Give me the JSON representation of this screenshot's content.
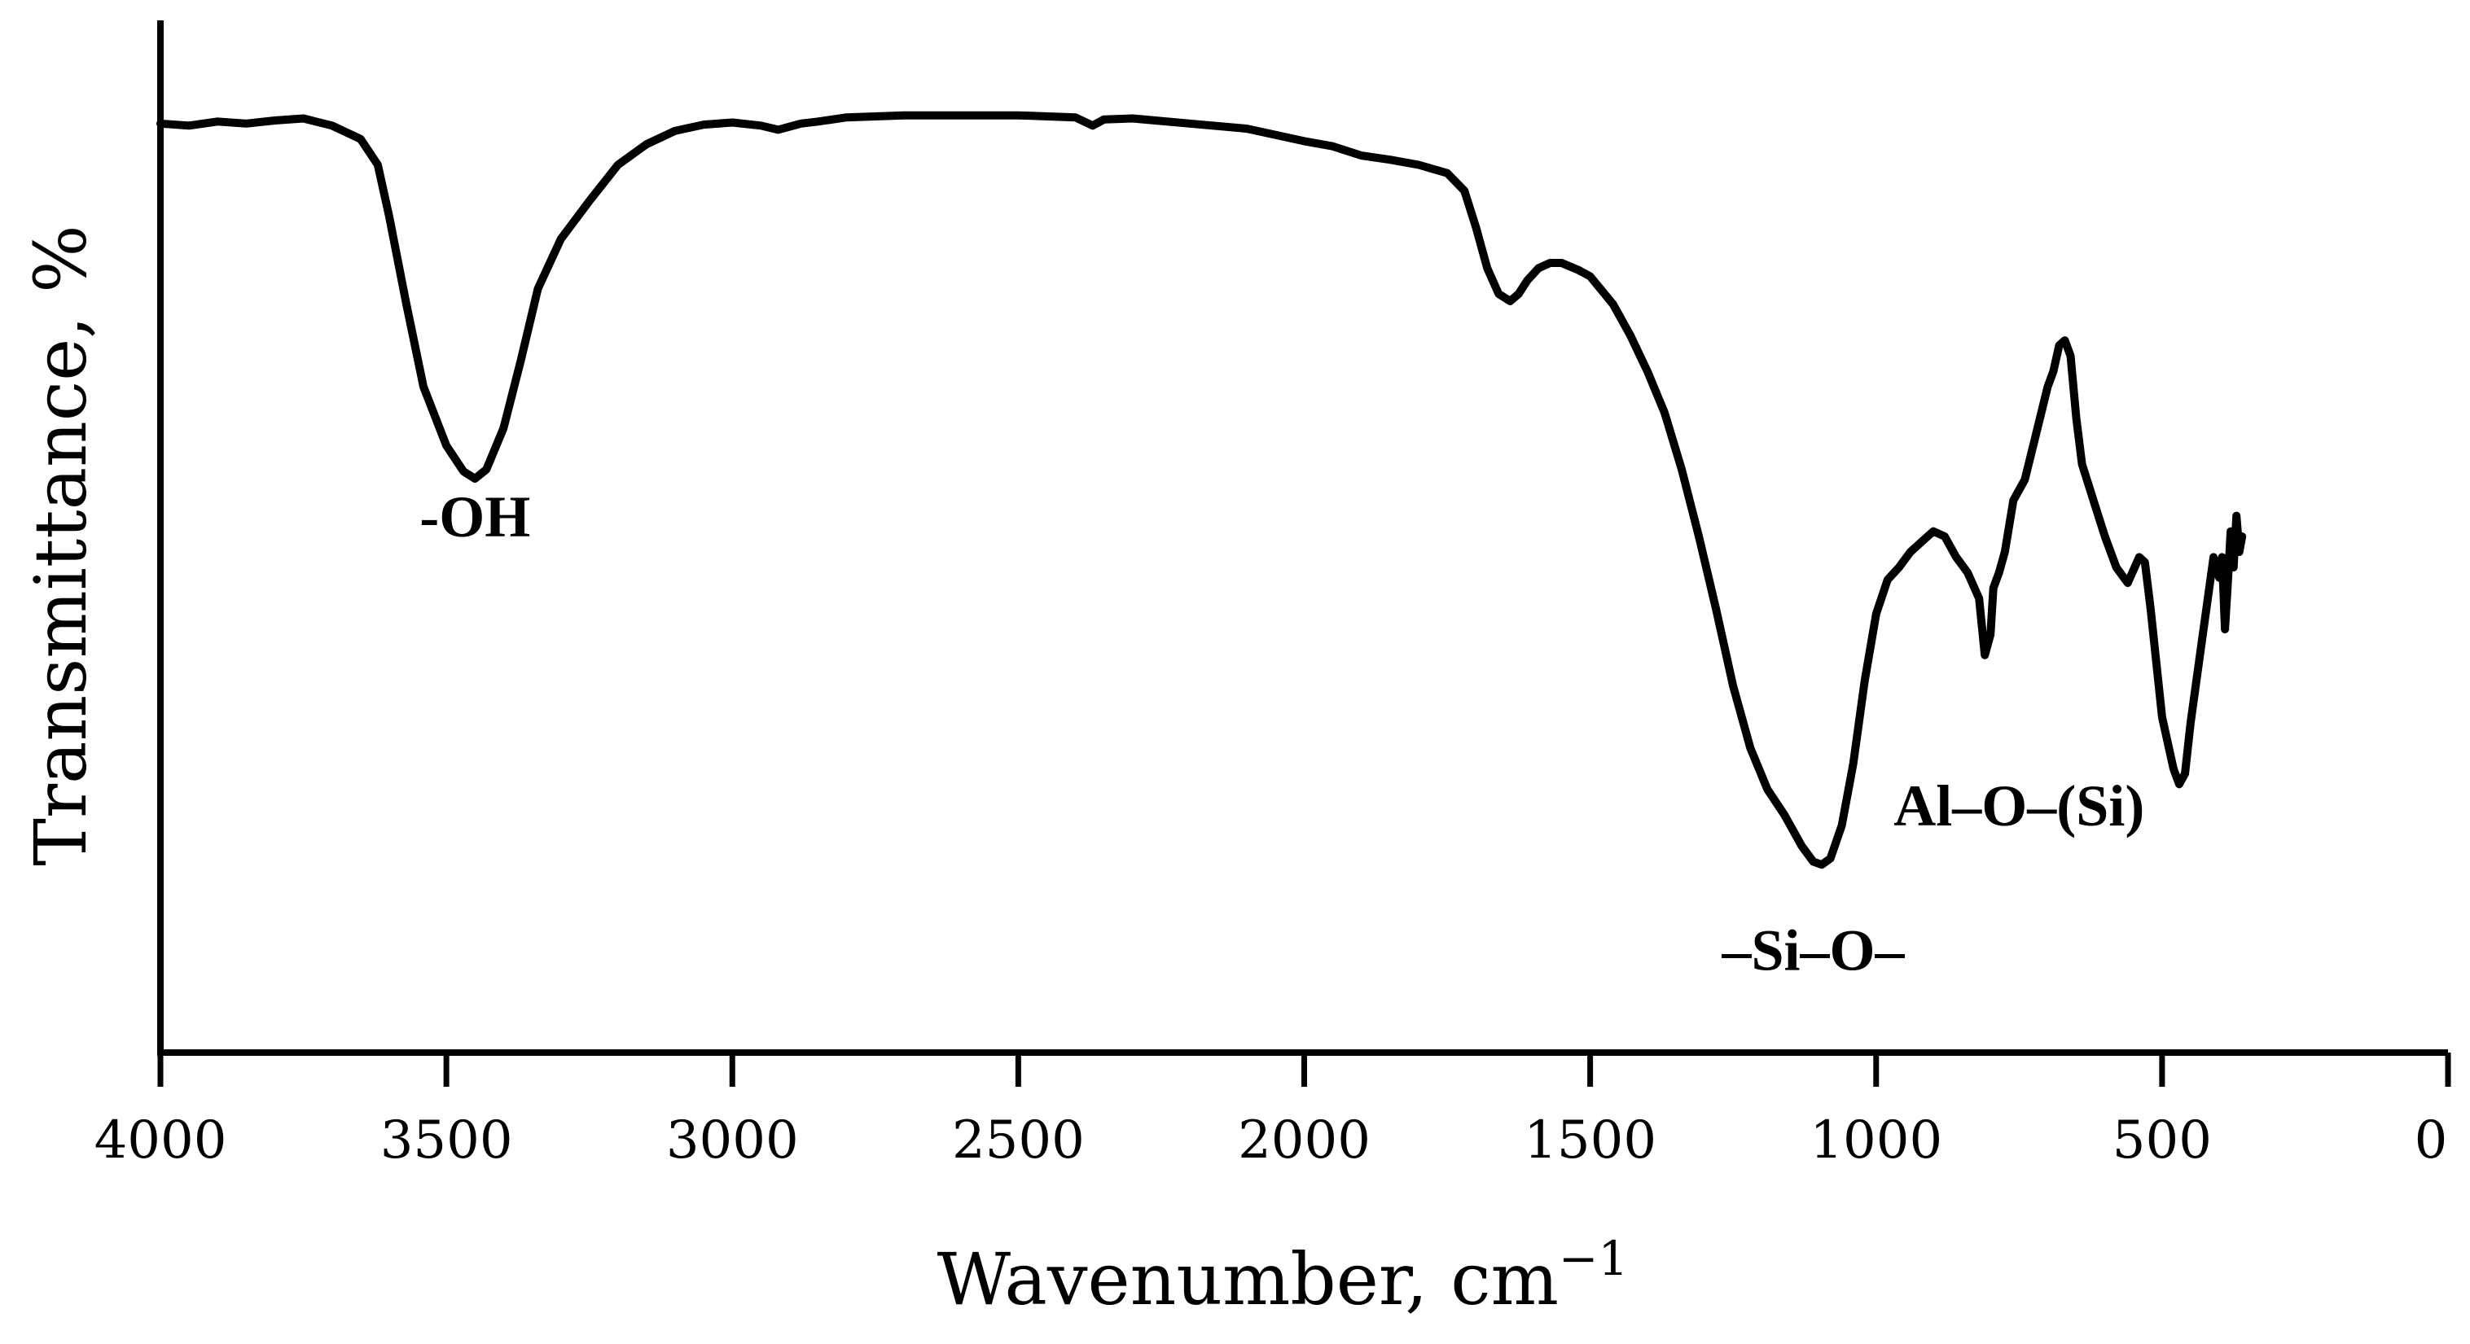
{
  "chart_data": {
    "type": "line",
    "title": "",
    "xlabel": "Wavenumber, cm",
    "xlabel_superscript": "−1",
    "ylabel": "Transmittance, %",
    "xlim": [
      4000,
      0
    ],
    "x_reversed": true,
    "ylim": [
      0,
      100
    ],
    "y_tick_labels_shown": false,
    "grid": false,
    "legend": "none",
    "x_ticks": [
      4000,
      3500,
      3000,
      2500,
      2000,
      1500,
      1000,
      500,
      0
    ],
    "x_tick_labels": [
      "4000",
      "3500",
      "3000",
      "2500",
      "2000",
      "1500",
      "1000",
      "500",
      "0"
    ],
    "line_color": "#000000",
    "series": [
      {
        "x": [
          4000,
          3950,
          3900,
          3850,
          3800,
          3750,
          3700,
          3650,
          3620,
          3600,
          3570,
          3540,
          3500,
          3470,
          3450,
          3430,
          3400,
          3370,
          3340,
          3300,
          3250,
          3200,
          3150,
          3100,
          3050,
          3000,
          2950,
          2920,
          2880,
          2850,
          2800,
          2700,
          2600,
          2500,
          2400,
          2370,
          2350,
          2300,
          2200,
          2100,
          2000,
          1950,
          1900,
          1850,
          1800,
          1750,
          1720,
          1700,
          1680,
          1660,
          1640,
          1625,
          1610,
          1590,
          1570,
          1550,
          1520,
          1500,
          1460,
          1430,
          1400,
          1370,
          1340,
          1310,
          1280,
          1250,
          1220,
          1190,
          1160,
          1130,
          1110,
          1095,
          1080,
          1060,
          1040,
          1020,
          1000,
          980,
          960,
          940,
          920,
          900,
          880,
          860,
          840,
          820,
          810,
          800,
          795,
          785,
          775,
          760,
          740,
          720,
          700,
          690,
          680,
          670,
          660,
          650,
          640,
          620,
          600,
          580,
          560,
          540,
          530,
          520,
          500,
          480,
          470,
          460,
          450,
          430,
          410,
          400,
          395,
          390,
          385,
          380,
          375,
          370,
          365,
          360
        ],
        "y": [
          90.0,
          89.8,
          90.2,
          90.0,
          90.3,
          90.5,
          89.8,
          88.5,
          86.0,
          81.0,
          72.5,
          64.5,
          58.8,
          56.3,
          55.6,
          56.5,
          60.5,
          67.0,
          74.0,
          78.8,
          82.5,
          86.0,
          88.0,
          89.3,
          89.9,
          90.1,
          89.8,
          89.4,
          90.0,
          90.2,
          90.6,
          90.8,
          90.8,
          90.8,
          90.6,
          89.8,
          90.4,
          90.5,
          90.0,
          89.5,
          88.3,
          87.8,
          86.9,
          86.5,
          86.0,
          85.2,
          83.5,
          80.0,
          76.0,
          73.5,
          72.8,
          73.5,
          74.8,
          76.0,
          76.5,
          76.5,
          75.8,
          75.2,
          72.5,
          69.5,
          66.0,
          62.0,
          56.5,
          50.0,
          43.0,
          35.5,
          29.5,
          25.5,
          23.0,
          20.0,
          18.5,
          18.2,
          18.8,
          22.0,
          28.0,
          36.0,
          42.5,
          45.8,
          47.0,
          48.5,
          49.5,
          50.5,
          50.0,
          48.0,
          46.5,
          44.0,
          38.5,
          40.5,
          45.0,
          46.5,
          48.5,
          53.5,
          55.5,
          60.0,
          64.5,
          66.0,
          68.5,
          69.0,
          67.5,
          61.5,
          57.0,
          53.5,
          50.0,
          47.0,
          45.5,
          48.0,
          47.5,
          43.0,
          32.5,
          27.5,
          26.0,
          27.0,
          32.0,
          40.0,
          48.0,
          46.0,
          48.0,
          41.0,
          45.5,
          50.5,
          47.0,
          52.0,
          48.5,
          50.0
        ]
      }
    ],
    "annotations": [
      {
        "text": "-OH",
        "x": 3450,
        "y": 50
      },
      {
        "text": "–Si–O–",
        "x": 1110,
        "y": 8
      },
      {
        "text": "Al–O–(Si)",
        "x": 750,
        "y": 22
      }
    ]
  }
}
